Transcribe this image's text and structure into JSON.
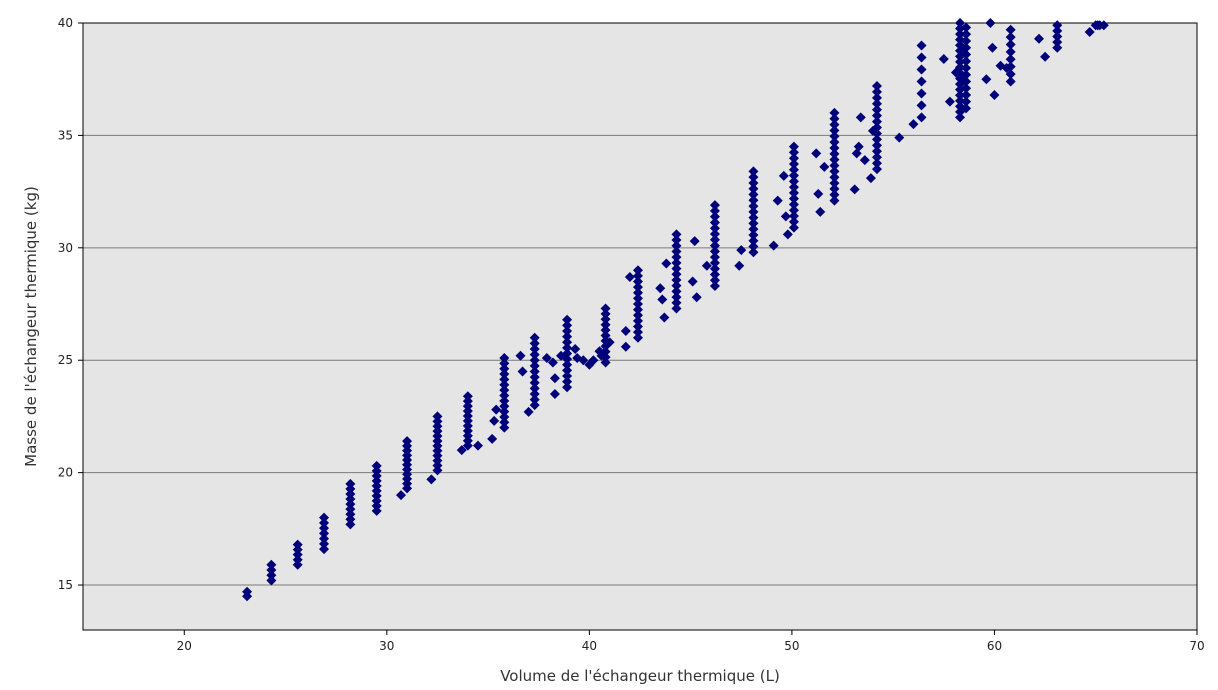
{
  "chart_data": {
    "type": "scatter",
    "title": "",
    "xlabel": "Volume de l'échangeur thermique (L)",
    "ylabel": "Masse de l'échangeur thermique (kg)",
    "xlim": [
      15,
      70
    ],
    "ylim": [
      13,
      40
    ],
    "xticks": [
      20,
      30,
      40,
      50,
      60,
      70
    ],
    "yticks": [
      15,
      20,
      25,
      30,
      35,
      40
    ],
    "grid": "horizontal",
    "marker": "diamond",
    "colors": {
      "marker": "#00007a",
      "plot_bg": "#e5e5e5",
      "grid": "#7a7a7a",
      "axis": "#000000"
    },
    "series": [
      {
        "columns": [
          {
            "x": 23.1,
            "ymin": 14.5,
            "ymax": 14.7,
            "n": 2
          },
          {
            "x": 24.3,
            "ymin": 15.2,
            "ymax": 15.9,
            "n": 4
          },
          {
            "x": 25.6,
            "ymin": 15.9,
            "ymax": 16.8,
            "n": 5
          },
          {
            "x": 26.9,
            "ymin": 16.6,
            "ymax": 18.0,
            "n": 7
          },
          {
            "x": 28.2,
            "ymin": 17.7,
            "ymax": 19.5,
            "n": 9
          },
          {
            "x": 29.5,
            "ymin": 18.3,
            "ymax": 20.3,
            "n": 10
          },
          {
            "x": 31.0,
            "ymin": 19.3,
            "ymax": 21.4,
            "n": 11
          },
          {
            "x": 32.5,
            "ymin": 20.1,
            "ymax": 22.5,
            "n": 12
          },
          {
            "x": 34.0,
            "ymin": 21.2,
            "ymax": 23.4,
            "n": 11
          },
          {
            "x": 35.8,
            "ymin": 22.0,
            "ymax": 25.1,
            "n": 14
          },
          {
            "x": 37.3,
            "ymin": 23.0,
            "ymax": 26.0,
            "n": 13
          },
          {
            "x": 38.9,
            "ymin": 23.8,
            "ymax": 26.8,
            "n": 13
          },
          {
            "x": 40.8,
            "ymin": 24.9,
            "ymax": 27.3,
            "n": 11
          },
          {
            "x": 42.4,
            "ymin": 26.0,
            "ymax": 29.0,
            "n": 13
          },
          {
            "x": 44.3,
            "ymin": 27.3,
            "ymax": 30.6,
            "n": 14
          },
          {
            "x": 46.2,
            "ymin": 28.3,
            "ymax": 31.9,
            "n": 15
          },
          {
            "x": 48.1,
            "ymin": 29.8,
            "ymax": 33.4,
            "n": 15
          },
          {
            "x": 50.1,
            "ymin": 30.9,
            "ymax": 34.5,
            "n": 15
          },
          {
            "x": 52.1,
            "ymin": 32.1,
            "ymax": 36.0,
            "n": 16
          },
          {
            "x": 54.2,
            "ymin": 33.5,
            "ymax": 37.2,
            "n": 15
          },
          {
            "x": 56.4,
            "ymin": 35.8,
            "ymax": 39.0,
            "n": 7
          },
          {
            "x": 58.3,
            "ymin": 35.8,
            "ymax": 40.0,
            "n": 18
          },
          {
            "x": 58.6,
            "ymin": 36.2,
            "ymax": 39.8,
            "n": 13
          },
          {
            "x": 60.8,
            "ymin": 37.4,
            "ymax": 39.7,
            "n": 8
          },
          {
            "x": 63.1,
            "ymin": 38.9,
            "ymax": 39.9,
            "n": 5
          }
        ],
        "points": [
          [
            30.7,
            19.0
          ],
          [
            32.2,
            19.7
          ],
          [
            33.7,
            21.0
          ],
          [
            34.5,
            21.2
          ],
          [
            35.2,
            21.5
          ],
          [
            35.3,
            22.3
          ],
          [
            35.4,
            22.8
          ],
          [
            36.6,
            25.2
          ],
          [
            36.7,
            24.5
          ],
          [
            37.0,
            22.7
          ],
          [
            37.9,
            25.1
          ],
          [
            38.2,
            24.9
          ],
          [
            38.3,
            24.2
          ],
          [
            38.3,
            23.5
          ],
          [
            38.6,
            25.2
          ],
          [
            39.3,
            25.5
          ],
          [
            39.4,
            25.1
          ],
          [
            39.7,
            25.0
          ],
          [
            40.0,
            24.8
          ],
          [
            40.2,
            25.0
          ],
          [
            40.5,
            25.4
          ],
          [
            40.6,
            25.2
          ],
          [
            41.0,
            25.8
          ],
          [
            41.8,
            25.6
          ],
          [
            41.8,
            26.3
          ],
          [
            42.0,
            28.7
          ],
          [
            43.5,
            28.2
          ],
          [
            43.6,
            27.7
          ],
          [
            43.7,
            26.9
          ],
          [
            43.8,
            29.3
          ],
          [
            45.1,
            28.5
          ],
          [
            45.2,
            30.3
          ],
          [
            45.3,
            27.8
          ],
          [
            45.8,
            29.2
          ],
          [
            47.4,
            29.2
          ],
          [
            47.5,
            29.9
          ],
          [
            49.1,
            30.1
          ],
          [
            49.3,
            32.1
          ],
          [
            49.6,
            33.2
          ],
          [
            49.7,
            31.4
          ],
          [
            49.8,
            30.6
          ],
          [
            51.2,
            34.2
          ],
          [
            51.4,
            31.6
          ],
          [
            51.3,
            32.4
          ],
          [
            51.6,
            33.6
          ],
          [
            53.1,
            32.6
          ],
          [
            53.2,
            34.2
          ],
          [
            53.3,
            34.5
          ],
          [
            53.4,
            35.8
          ],
          [
            53.6,
            33.9
          ],
          [
            53.9,
            33.1
          ],
          [
            54.0,
            35.2
          ],
          [
            55.3,
            34.9
          ],
          [
            56.0,
            35.5
          ],
          [
            57.5,
            38.4
          ],
          [
            57.8,
            36.5
          ],
          [
            58.1,
            37.8
          ],
          [
            59.6,
            37.5
          ],
          [
            59.8,
            40.0
          ],
          [
            59.9,
            38.9
          ],
          [
            60.0,
            36.8
          ],
          [
            60.3,
            38.1
          ],
          [
            60.6,
            38.0
          ],
          [
            62.2,
            39.3
          ],
          [
            62.5,
            38.5
          ],
          [
            64.7,
            39.6
          ],
          [
            65.0,
            39.9
          ],
          [
            65.1,
            39.9
          ],
          [
            65.2,
            39.9
          ],
          [
            65.4,
            39.9
          ]
        ]
      }
    ]
  }
}
